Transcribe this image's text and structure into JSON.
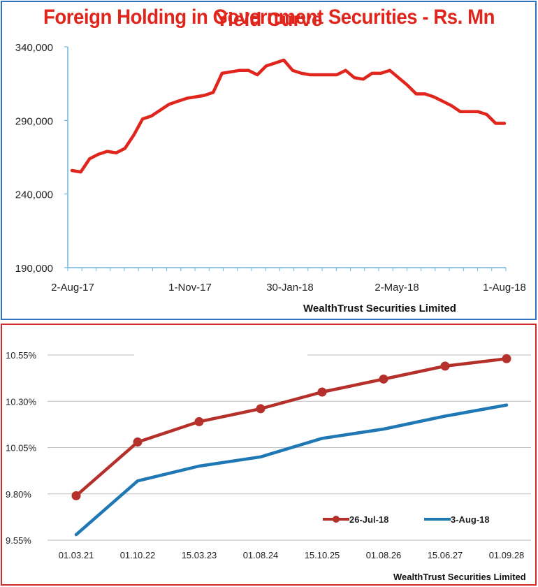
{
  "chart_data": [
    {
      "type": "line",
      "title": "Foreign Holding in Government Securities - Rs. Mn",
      "source": "WealthTrust Securities Limited",
      "xlabel": "",
      "ylabel": "",
      "ylim": [
        190000,
        340000
      ],
      "y_ticks": [
        "340,000",
        "290,000",
        "240,000",
        "190,000"
      ],
      "y_tick_values": [
        340000,
        290000,
        240000,
        190000
      ],
      "x_tick_labels": [
        "2-Aug-17",
        "1-Nov-17",
        "30-Jan-18",
        "2-May-18",
        "1-Aug-18"
      ],
      "grid": false,
      "color": "#e0251c",
      "series": [
        {
          "values": [
            256000,
            255000,
            264000,
            267000,
            269000,
            268000,
            271000,
            280000,
            291000,
            293000,
            297000,
            301000,
            303000,
            305000,
            306000,
            307000,
            309000,
            322000,
            323000,
            324000,
            324000,
            321000,
            327000,
            329000,
            331000,
            324000,
            322000,
            321000,
            321000,
            321000,
            321000,
            324000,
            319000,
            318000,
            322000,
            322000,
            324000,
            319000,
            314000,
            308000,
            308000,
            306000,
            303000,
            300000,
            296000,
            296000,
            296000,
            294000,
            288000,
            288000
          ]
        }
      ]
    },
    {
      "type": "line",
      "title": "Yield Curve",
      "source": "WealthTrust Securities Limited",
      "xlabel": "",
      "ylabel": "",
      "ylim": [
        9.55,
        10.55
      ],
      "y_ticks": [
        "10.55%",
        "10.30%",
        "10.05%",
        "9.80%",
        "9.55%"
      ],
      "y_tick_values": [
        10.55,
        10.3,
        10.05,
        9.8,
        9.55
      ],
      "categories": [
        "01.03.21",
        "01.10.22",
        "15.03.23",
        "01.08.24",
        "15.10.25",
        "01.08.26",
        "15.06.27",
        "01.09.28"
      ],
      "grid": true,
      "legend_position": "bottom-right",
      "series": [
        {
          "name": "26-Jul-18",
          "color": "#b5302a",
          "markers": true,
          "values": [
            9.79,
            10.08,
            10.19,
            10.26,
            10.35,
            10.42,
            10.49,
            10.53
          ]
        },
        {
          "name": "3-Aug-18",
          "color": "#1f78b4",
          "markers": false,
          "values": [
            9.58,
            9.87,
            9.95,
            10.0,
            10.1,
            10.15,
            10.22,
            10.28
          ]
        }
      ]
    }
  ]
}
